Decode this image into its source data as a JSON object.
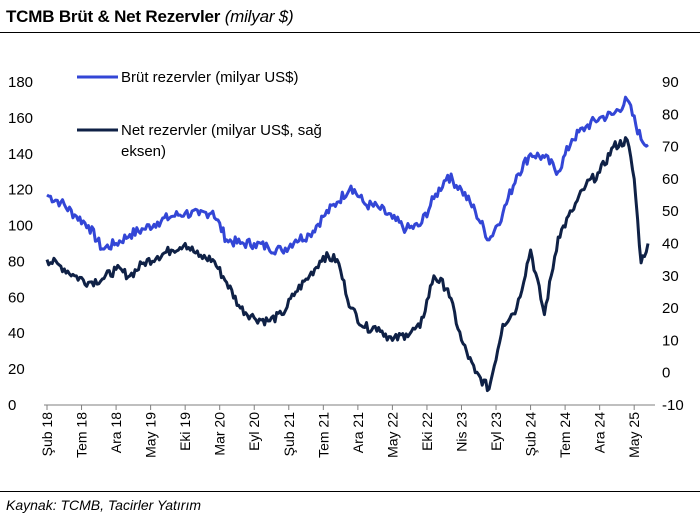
{
  "title": {
    "main": "TCMB Brüt & Net Rezervler",
    "unit": "(milyar $)"
  },
  "source": "Kaynak: TCMB, Tacirler Yatırım",
  "colors": {
    "gross": "#3346d6",
    "net": "#0f2146"
  },
  "chart_data": {
    "type": "line",
    "title": "TCMB Brüt & Net Rezervler (milyar $)",
    "x_tick_labels": [
      "Şub 18",
      "Tem 18",
      "Ara 18",
      "May 19",
      "Eki 19",
      "Mar 20",
      "Eyl 20",
      "Şub 21",
      "Tem 21",
      "Ara 21",
      "May 22",
      "Eki 22",
      "Nis 23",
      "Eyl 23",
      "Şub 24",
      "Tem 24",
      "Ara 24",
      "May 25"
    ],
    "y_left": {
      "min": 0,
      "max": 180,
      "ticks": [
        0,
        20,
        40,
        60,
        80,
        100,
        120,
        140,
        160,
        180
      ]
    },
    "y_right": {
      "min": -10,
      "max": 90,
      "ticks": [
        -10,
        0,
        10,
        20,
        30,
        40,
        50,
        60,
        70,
        80,
        90
      ]
    },
    "legend": {
      "placement": "top-left"
    },
    "grid": false,
    "series": [
      {
        "name": "Brüt rezervler (milyar US$)",
        "axis": "left",
        "x": [
          "2018-02",
          "2018-04",
          "2018-06",
          "2018-08",
          "2018-10",
          "2018-12",
          "2019-02",
          "2019-04",
          "2019-06",
          "2019-08",
          "2019-10",
          "2019-12",
          "2020-02",
          "2020-04",
          "2020-06",
          "2020-08",
          "2020-10",
          "2020-12",
          "2021-02",
          "2021-04",
          "2021-06",
          "2021-08",
          "2021-10",
          "2021-12",
          "2022-02",
          "2022-04",
          "2022-06",
          "2022-08",
          "2022-10",
          "2022-12",
          "2023-02",
          "2023-04",
          "2023-06",
          "2023-08",
          "2023-10",
          "2023-12",
          "2024-02",
          "2024-04",
          "2024-06",
          "2024-08",
          "2024-10",
          "2024-12",
          "2025-02",
          "2025-04",
          "2025-05"
        ],
        "values": [
          117,
          113,
          106,
          100,
          87,
          90,
          95,
          98,
          102,
          105,
          107,
          106,
          108,
          92,
          90,
          90,
          88,
          86,
          92,
          95,
          105,
          113,
          122,
          112,
          110,
          104,
          98,
          100,
          115,
          128,
          120,
          108,
          92,
          107,
          128,
          140,
          138,
          130,
          148,
          155,
          160,
          162,
          170,
          148,
          145
        ]
      },
      {
        "name": "Net rezervler (milyar US$, sağ eksen)",
        "axis": "right",
        "x": [
          "2018-02",
          "2018-04",
          "2018-06",
          "2018-08",
          "2018-10",
          "2018-12",
          "2019-02",
          "2019-04",
          "2019-06",
          "2019-08",
          "2019-10",
          "2019-12",
          "2020-02",
          "2020-04",
          "2020-06",
          "2020-08",
          "2020-10",
          "2020-12",
          "2021-02",
          "2021-04",
          "2021-06",
          "2021-08",
          "2021-10",
          "2021-12",
          "2022-02",
          "2022-04",
          "2022-06",
          "2022-08",
          "2022-10",
          "2022-12",
          "2023-02",
          "2023-04",
          "2023-06",
          "2023-08",
          "2023-10",
          "2023-12",
          "2024-02",
          "2024-04",
          "2024-06",
          "2024-08",
          "2024-10",
          "2024-12",
          "2025-02",
          "2025-03",
          "2025-04",
          "2025-05"
        ],
        "values": [
          35,
          33,
          30,
          28,
          29,
          32,
          30,
          34,
          36,
          38,
          40,
          36,
          35,
          28,
          20,
          17,
          16,
          18,
          25,
          30,
          36,
          35,
          20,
          14,
          14,
          10,
          12,
          14,
          30,
          26,
          10,
          0,
          -5,
          15,
          20,
          38,
          18,
          42,
          50,
          58,
          62,
          70,
          72,
          60,
          34,
          40
        ]
      }
    ]
  }
}
